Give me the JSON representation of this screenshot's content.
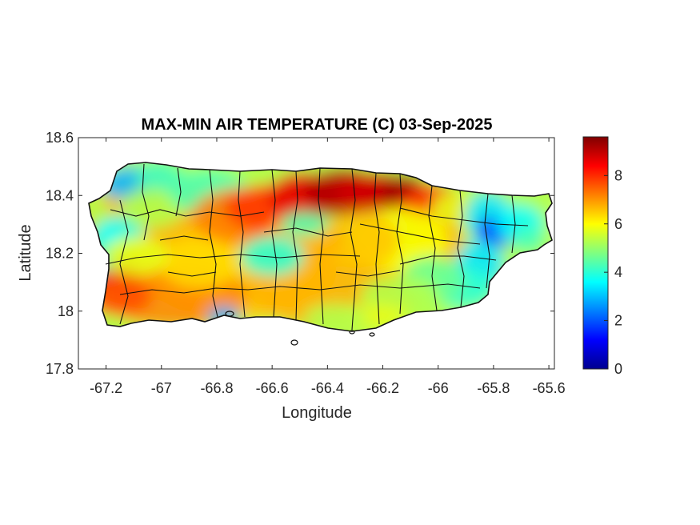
{
  "title": "MAX-MIN AIR TEMPERATURE (C) 03-Sep-2025",
  "map": {
    "xlabel": "Longitude",
    "ylabel": "Latitude",
    "xlim": [
      -67.3,
      -65.58
    ],
    "ylim": [
      17.8,
      18.6
    ],
    "xticks": [
      -67.2,
      -67,
      -66.8,
      -66.6,
      -66.4,
      -66.2,
      -66,
      -65.8,
      -65.6
    ],
    "xtick_labels": [
      "-67.2",
      "-67",
      "-66.8",
      "-66.6",
      "-66.4",
      "-66.2",
      "-66",
      "-65.8",
      "-65.6"
    ],
    "yticks": [
      17.8,
      18,
      18.2,
      18.4,
      18.6
    ],
    "ytick_labels": [
      "17.8",
      "18",
      "18.2",
      "18.4",
      "18.6"
    ],
    "region": "Puerto Rico municipalities",
    "colormap": "jet"
  },
  "colorbar": {
    "range": [
      0,
      9.6
    ],
    "ticks": [
      0,
      2,
      4,
      6,
      8
    ],
    "tick_labels": [
      "0",
      "2",
      "4",
      "6",
      "8"
    ],
    "colors": [
      "#00008f",
      "#0000ff",
      "#0080ff",
      "#00ffff",
      "#80ff80",
      "#ffff00",
      "#ff8000",
      "#ff0000",
      "#800000"
    ]
  }
}
